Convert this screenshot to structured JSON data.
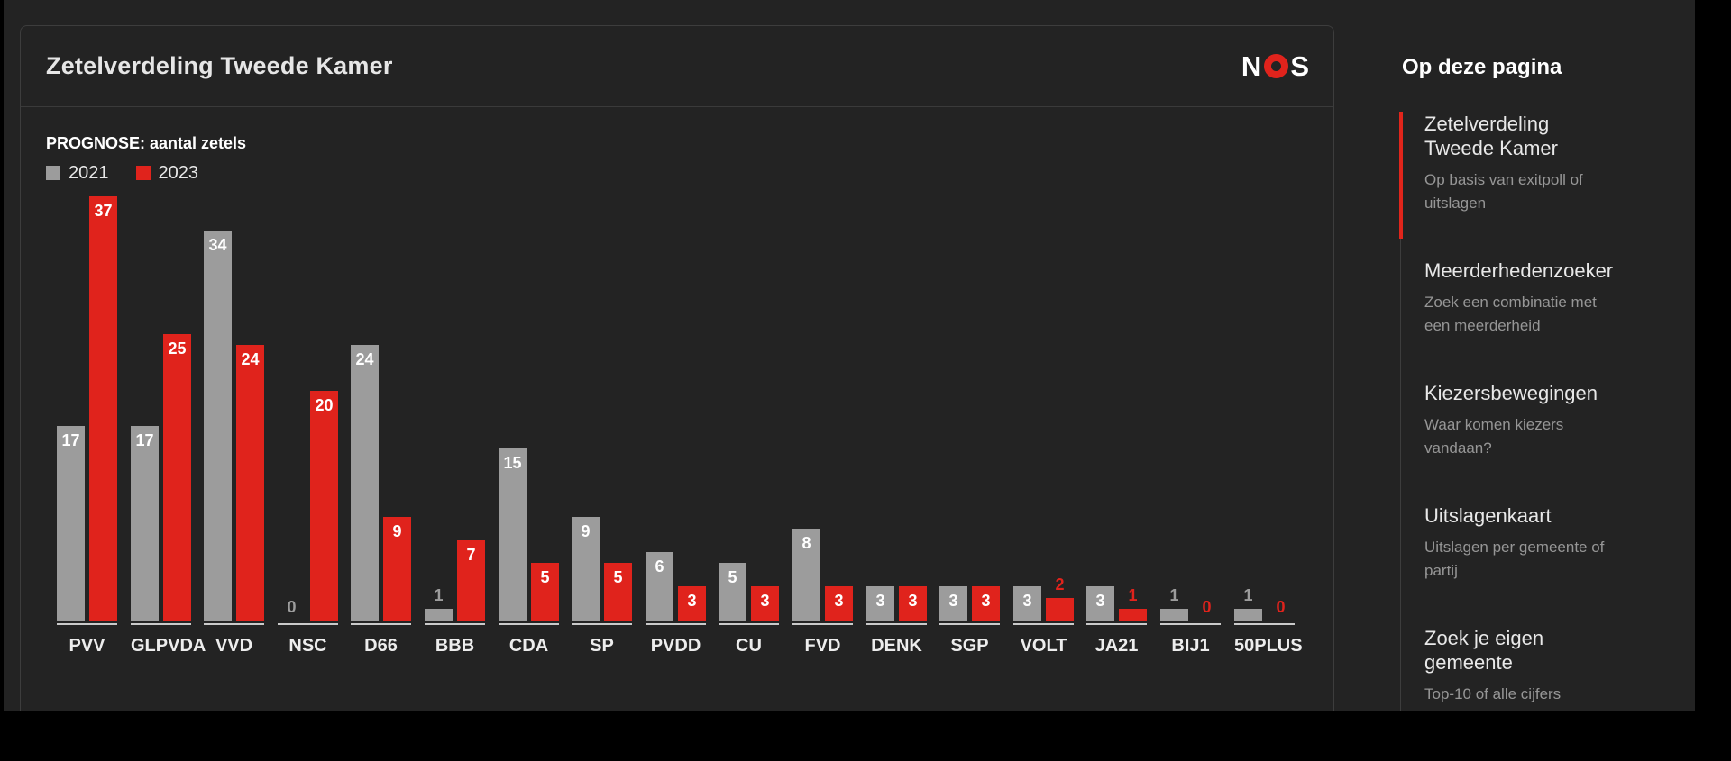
{
  "card": {
    "title": "Zetelverdeling Tweede Kamer",
    "logo_left": "N",
    "logo_right": "S"
  },
  "chart_data": {
    "type": "bar",
    "title": "PROGNOSE: aantal zetels",
    "categories": [
      "PVV",
      "GLPVDA",
      "VVD",
      "NSC",
      "D66",
      "BBB",
      "CDA",
      "SP",
      "PVDD",
      "CU",
      "FVD",
      "DENK",
      "SGP",
      "VOLT",
      "JA21",
      "BIJ1",
      "50PLUS"
    ],
    "series": [
      {
        "name": "2021",
        "color": "#9c9c9c",
        "values": [
          17,
          17,
          34,
          0,
          24,
          1,
          15,
          9,
          6,
          5,
          8,
          3,
          3,
          3,
          3,
          1,
          1
        ]
      },
      {
        "name": "2023",
        "color": "#e0231c",
        "values": [
          37,
          25,
          24,
          20,
          9,
          7,
          5,
          5,
          3,
          3,
          3,
          3,
          3,
          2,
          1,
          0,
          0
        ]
      }
    ],
    "ylim": [
      0,
      40
    ],
    "grid": false,
    "legend_position": "top-left",
    "value_labels": true,
    "value_label_inside_threshold": 3
  },
  "sidebar": {
    "heading": "Op deze pagina",
    "items": [
      {
        "title": "Zetelverdeling Tweede Kamer",
        "subtitle": "Op basis van exitpoll of uitslagen",
        "active": true
      },
      {
        "title": "Meerderhedenzoeker",
        "subtitle": "Zoek een combinatie met een meerderheid",
        "active": false
      },
      {
        "title": "Kiezersbewegingen",
        "subtitle": "Waar komen kiezers vandaan?",
        "active": false
      },
      {
        "title": "Uitslagenkaart",
        "subtitle": "Uitslagen per gemeente of partij",
        "active": false
      },
      {
        "title": "Zoek je eigen gemeente",
        "subtitle": "Top-10 of alle cijfers",
        "active": false
      }
    ]
  },
  "colors": {
    "accent_red": "#e0231c",
    "bar_gray": "#9c9c9c",
    "surface": "#232323"
  }
}
